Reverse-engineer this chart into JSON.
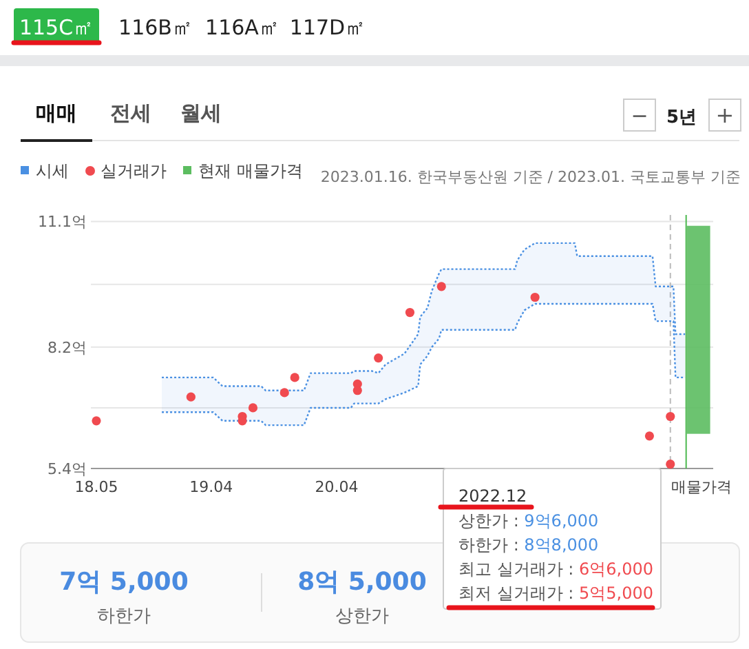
{
  "chart_data": {
    "type": "line",
    "legend": "top left",
    "grid": "y",
    "xlim": [
      "2018-04-15",
      "2023-04-05"
    ],
    "ylim": [
      5.4,
      11.25
    ],
    "xticks": [
      {
        "value": "2018-05",
        "label": "18.05"
      },
      {
        "value": "2019-04",
        "label": "19.04"
      },
      {
        "value": "2020-04",
        "label": "20.04"
      },
      {
        "value": "2023-03",
        "label": "매물가격"
      }
    ],
    "yticks": [
      {
        "value": 5.4,
        "label": "5.4억"
      },
      {
        "value": 6.8,
        "label": null
      },
      {
        "value": 8.2,
        "label": "8.2억"
      },
      {
        "value": 9.65,
        "label": null
      },
      {
        "value": 11.1,
        "label": "11.1억"
      }
    ],
    "series": [
      {
        "name": "시세",
        "type": "line",
        "line_style": "dotted",
        "color": "#4a90e2",
        "x": [
          "2018-11-08",
          "2019-04-07",
          "2019-05-04",
          "2019-08-25",
          "2019-09-07",
          "2019-12-28",
          "2020-01-16",
          "2020-05-13",
          "2020-05-22",
          "2020-07-13",
          "2020-08-01",
          "2020-08-22",
          "2020-10-16",
          "2020-11-25",
          "2020-12-01",
          "2020-12-22",
          "2021-01-04",
          "2021-01-25",
          "2021-02-01",
          "2021-09-04",
          "2021-09-10",
          "2021-10-01",
          "2021-11-01",
          "2022-02-25",
          "2022-03-04",
          "2022-10-10",
          "2022-10-19",
          "2022-12-10",
          "2022-12-16",
          "2023-01-13"
        ],
        "values": [
          7.5,
          7.5,
          7.3,
          7.3,
          7.2,
          7.2,
          7.6,
          7.6,
          7.65,
          7.65,
          7.6,
          7.8,
          8.05,
          8.5,
          8.9,
          9.1,
          9.5,
          9.9,
          10.0,
          10.0,
          10.2,
          10.45,
          10.6,
          10.6,
          10.3,
          10.3,
          9.6,
          9.6,
          8.5,
          8.5
        ],
        "upper": [
          7.5,
          7.5,
          7.3,
          7.3,
          7.2,
          7.2,
          7.6,
          7.6,
          7.65,
          7.65,
          7.6,
          7.8,
          8.05,
          8.5,
          8.9,
          9.1,
          9.5,
          9.9,
          10.0,
          10.0,
          10.2,
          10.45,
          10.6,
          10.6,
          10.3,
          10.3,
          9.6,
          9.6,
          8.5,
          8.5
        ],
        "lower": [
          6.7,
          6.7,
          6.5,
          6.5,
          6.4,
          6.4,
          6.8,
          6.8,
          6.9,
          6.9,
          6.9,
          7.0,
          7.15,
          7.3,
          7.8,
          8.0,
          8.2,
          8.4,
          8.6,
          8.6,
          8.75,
          9.05,
          9.2,
          9.2,
          9.2,
          9.2,
          8.8,
          8.8,
          7.5,
          7.5
        ]
      },
      {
        "line_style": "dotted",
        "color": "#4a90e2",
        "x": [
          "2018-11-08",
          "2019-04-07",
          "2019-05-04",
          "2019-08-25",
          "2019-09-07",
          "2019-12-28",
          "2020-01-16",
          "2020-05-13",
          "2020-05-22",
          "2020-07-13",
          "2020-08-01",
          "2020-08-22",
          "2020-10-16",
          "2020-11-25",
          "2020-12-01",
          "2020-12-22",
          "2021-01-04",
          "2021-01-25",
          "2021-02-01",
          "2021-09-04",
          "2021-09-10",
          "2021-10-01",
          "2021-11-01",
          "2022-02-25",
          "2022-03-04",
          "2022-10-10",
          "2022-10-19",
          "2022-12-10",
          "2022-12-16",
          "2023-01-13"
        ],
        "values": [
          6.7,
          6.7,
          6.5,
          6.5,
          6.4,
          6.4,
          6.8,
          6.8,
          6.9,
          6.9,
          6.9,
          7.0,
          7.15,
          7.3,
          7.8,
          8.0,
          8.2,
          8.4,
          8.6,
          8.6,
          8.75,
          9.05,
          9.2,
          9.2,
          9.2,
          9.2,
          8.8,
          8.8,
          7.5,
          7.5
        ]
      },
      {
        "name": "실거래가",
        "type": "scatter",
        "marker": "circle",
        "color": "#f04a4f",
        "x": [
          "2018-05",
          "2019-02",
          "2019-07",
          "2019-07",
          "2019-08",
          "2019-11",
          "2019-12",
          "2020-06",
          "2020-06",
          "2020-08",
          "2020-11",
          "2021-02",
          "2021-11",
          "2022-10",
          "2022-12",
          "2022-12"
        ],
        "values": [
          6.5,
          7.05,
          6.6,
          6.5,
          6.8,
          7.15,
          7.5,
          7.35,
          7.2,
          7.95,
          9.0,
          9.6,
          9.35,
          6.15,
          6.6,
          5.5
        ]
      },
      {
        "name": "현재 매물가격",
        "type": "bar",
        "color": "#5cbd60",
        "x": [
          "2023-02-21"
        ],
        "base": [
          6.2
        ],
        "values": [
          4.8
        ]
      }
    ],
    "ref_lines": [
      {
        "axis": "x",
        "value": "2022-12",
        "color": "#bbbbbb",
        "line_style": "dashed"
      },
      {
        "axis": "x",
        "value": "2023-01-16",
        "color": "#4cb84f",
        "line_style": "solid"
      }
    ],
    "annotations": [
      "115C㎡",
      "116B㎡",
      "116A㎡",
      "117D㎡",
      "매매",
      "전세",
      "월세",
      "−",
      "5년",
      "+",
      "2023.01.16. 한국부동산원 기준 / 2023.01. 국토교통부 기준",
      "2022.12",
      "상한가 : 9억6,000",
      "하한가 : 8억8,000",
      "최고 실거래가 : 6억6,000",
      "최저 실거래가 : 5억5,000",
      "7억 5,000",
      "하한가",
      "8억 5,000",
      "상한가"
    ]
  }
}
